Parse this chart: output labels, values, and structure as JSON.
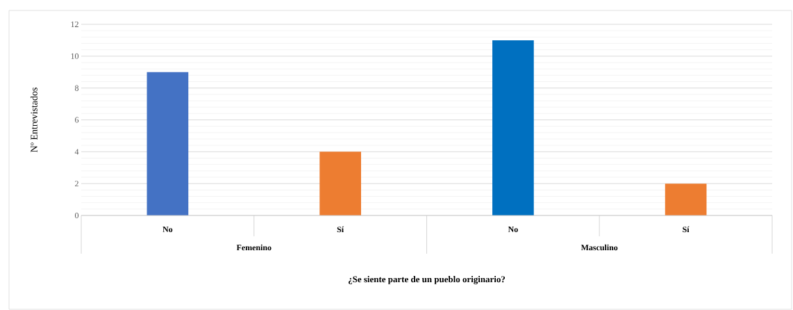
{
  "chart_data": {
    "type": "bar",
    "xlabel": "¿Se siente parte de un pueblo originario?",
    "ylabel": "Nº Entrevistados",
    "categories": [
      "No",
      "Sí",
      "No",
      "Sí"
    ],
    "annotations": [
      "Femenino",
      "Masculino"
    ],
    "values": [
      9,
      4,
      11,
      2
    ],
    "colors": [
      "#4472c4",
      "#ed7d31",
      "#0070c0",
      "#ed7d31"
    ],
    "ylim": [
      0,
      12
    ],
    "yticks": [
      0,
      2,
      4,
      6,
      8,
      10,
      12
    ],
    "grid": "y"
  }
}
